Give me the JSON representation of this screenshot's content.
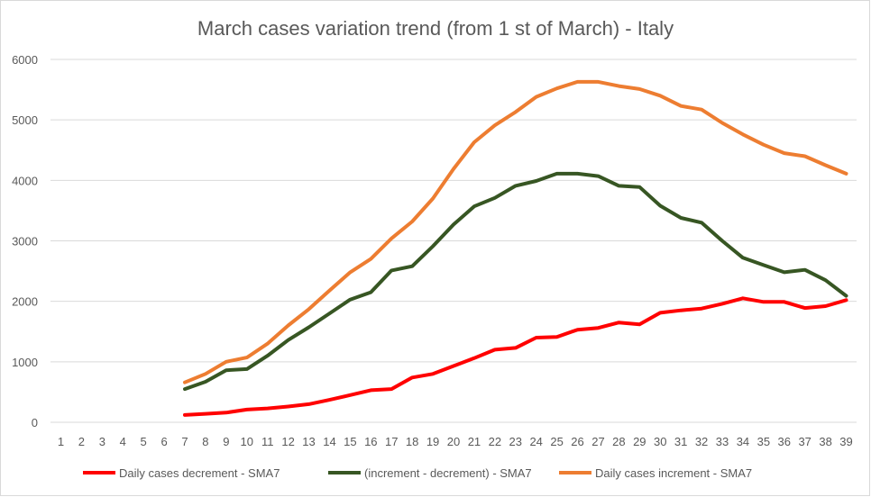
{
  "chart_data": {
    "type": "line",
    "title": "March cases variation trend (from 1 st of March) - Italy",
    "xlabel": "",
    "ylabel": "",
    "ylim": [
      0,
      6000
    ],
    "yticks": [
      0,
      1000,
      2000,
      3000,
      4000,
      5000,
      6000
    ],
    "x": [
      1,
      2,
      3,
      4,
      5,
      6,
      7,
      8,
      9,
      10,
      11,
      12,
      13,
      14,
      15,
      16,
      17,
      18,
      19,
      20,
      21,
      22,
      23,
      24,
      25,
      26,
      27,
      28,
      29,
      30,
      31,
      32,
      33,
      34,
      35,
      36,
      37,
      38,
      39
    ],
    "legend_position": "bottom",
    "series": [
      {
        "name": "Daily cases decrement - SMA7",
        "color": "#ff0000",
        "values": [
          null,
          null,
          null,
          null,
          null,
          null,
          120,
          140,
          160,
          210,
          230,
          260,
          300,
          370,
          450,
          530,
          550,
          740,
          800,
          930,
          1060,
          1200,
          1230,
          1400,
          1410,
          1530,
          1560,
          1650,
          1620,
          1810,
          1850,
          1880,
          1960,
          2050,
          1990,
          1990,
          1890,
          1920,
          2020
        ]
      },
      {
        "name": "(increment - decrement) - SMA7",
        "color": "#375623",
        "values": [
          null,
          null,
          null,
          null,
          null,
          null,
          550,
          670,
          860,
          880,
          1100,
          1360,
          1570,
          1800,
          2030,
          2150,
          2510,
          2580,
          2910,
          3270,
          3570,
          3710,
          3910,
          3990,
          4110,
          4110,
          4070,
          3910,
          3890,
          3580,
          3380,
          3300,
          3000,
          2720,
          2600,
          2480,
          2520,
          2350,
          2090
        ]
      },
      {
        "name": "Daily cases increment - SMA7",
        "color": "#ed7d31",
        "values": [
          null,
          null,
          null,
          null,
          null,
          null,
          660,
          800,
          1000,
          1070,
          1300,
          1600,
          1870,
          2180,
          2480,
          2700,
          3040,
          3320,
          3700,
          4190,
          4630,
          4910,
          5130,
          5380,
          5520,
          5630,
          5630,
          5560,
          5510,
          5400,
          5230,
          5170,
          4950,
          4760,
          4590,
          4450,
          4400,
          4250,
          4110
        ]
      }
    ]
  }
}
